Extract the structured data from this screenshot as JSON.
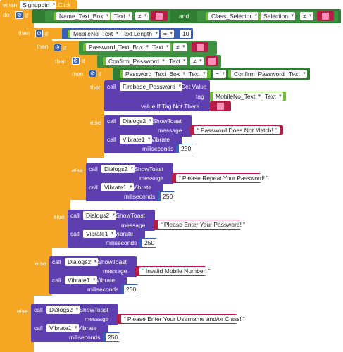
{
  "event": {
    "when": "when",
    "component": "Signupbtn",
    "event_name": ".Click",
    "do": "do"
  },
  "kw": {
    "if": "if",
    "then": "then",
    "else": "else",
    "and": "and",
    "call": "call",
    "get_value": ".Get Value",
    "tag": "tag",
    "value_if_tag": "value If Tag Not There",
    "message": "message",
    "milliseconds": "miliseconds"
  },
  "cond1": {
    "left_component": "Name_Text_Box",
    "left_prop": "Text",
    "op": "≠",
    "and": "and",
    "right_component": "Class_Selector",
    "right_prop": "Selection",
    "right_op": "≠"
  },
  "cond2": {
    "component": "MobileNo_Text",
    "prop": "Text Length",
    "op": "=",
    "value": "10"
  },
  "cond3": {
    "component": "Password_Text_Box",
    "prop": "Text",
    "op": "≠"
  },
  "cond4": {
    "component": "Confirm_Password",
    "prop": "Text",
    "op": "≠"
  },
  "cond5": {
    "left_component": "Password_Text_Box",
    "left_prop": "Text",
    "op": "=",
    "right_component": "Confirm_Password",
    "right_prop": "Text"
  },
  "firebase": {
    "component": "Firebase_Password",
    "tag_component": "MobileNo_Text",
    "tag_prop": "Text"
  },
  "dialogs": "Dialogs2",
  "show_toast": ".ShowToast",
  "vibrate_component": "Vibrate1",
  "vibrate_method": ".Vibrate",
  "vibrate_ms": "250",
  "messages": {
    "mismatch": "Password Does Not Match!",
    "repeat": "Please Repeat Your Password!",
    "enter_pw": "Please Enter Your Password!",
    "invalid_mobile": "Invalid Mobile Number!",
    "enter_user": "Please Enter Your Username and/or Class!"
  },
  "colors": {
    "event": "#f5a623",
    "control": "#2e7d32",
    "logic": "#3a5fb5",
    "text": "#b71c47",
    "procedure": "#5e3fb0",
    "component_getter": "#6fbf3a"
  }
}
